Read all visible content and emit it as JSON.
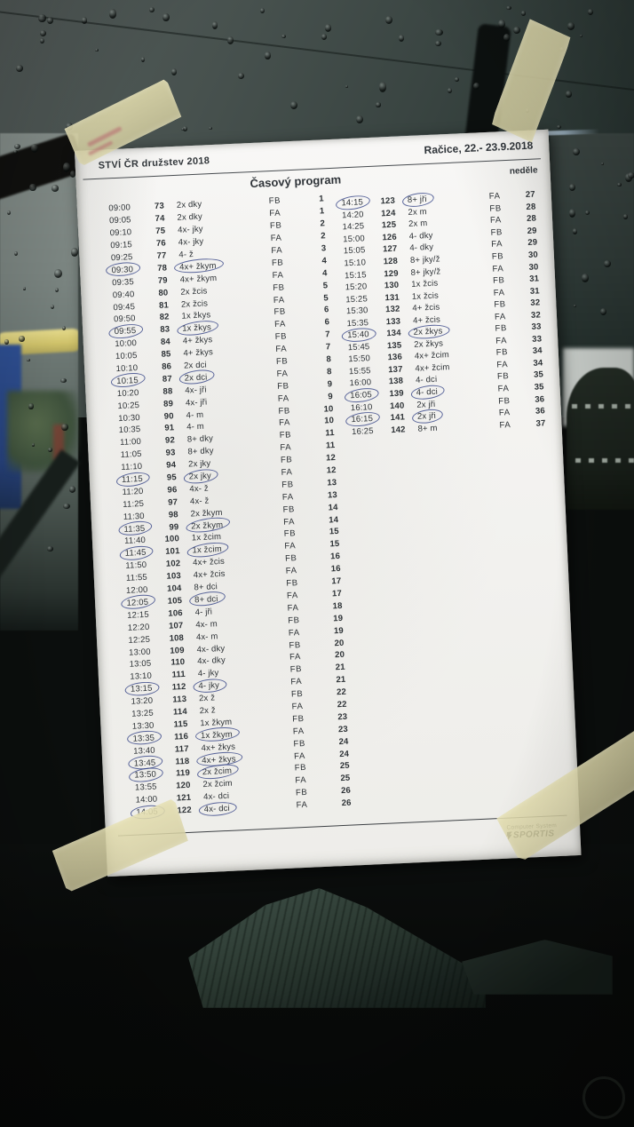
{
  "header": {
    "title_fragment": "STVÍ ČR družstev 2018",
    "location_date": "Račice,  22.- 23.9.2018",
    "program_title": "Časový program",
    "day_label": "neděle"
  },
  "schedule": {
    "columns_meaning": [
      "time",
      "start_number",
      "boat_category",
      "final_class",
      "race_number",
      "circled"
    ],
    "left": [
      [
        "09:00",
        "73",
        "2x dky",
        "FB",
        "1",
        0
      ],
      [
        "09:05",
        "74",
        "2x dky",
        "FA",
        "1",
        0
      ],
      [
        "09:10",
        "75",
        "4x- jky",
        "FB",
        "2",
        0
      ],
      [
        "09:15",
        "76",
        "4x- jky",
        "FA",
        "2",
        0
      ],
      [
        "09:25",
        "77",
        "4- ž",
        "FA",
        "3",
        0
      ],
      [
        "09:30",
        "78",
        "4x+ žkym",
        "FB",
        "4",
        1
      ],
      [
        "09:35",
        "79",
        "4x+ žkym",
        "FA",
        "4",
        0
      ],
      [
        "09:40",
        "80",
        "2x žcis",
        "FB",
        "5",
        0
      ],
      [
        "09:45",
        "81",
        "2x žcis",
        "FA",
        "5",
        0
      ],
      [
        "09:50",
        "82",
        "1x žkys",
        "FB",
        "6",
        0
      ],
      [
        "09:55",
        "83",
        "1x žkys",
        "FA",
        "6",
        1
      ],
      [
        "10:00",
        "84",
        "4+ žkys",
        "FB",
        "7",
        0
      ],
      [
        "10:05",
        "85",
        "4+ žkys",
        "FA",
        "7",
        0
      ],
      [
        "10:10",
        "86",
        "2x dci",
        "FB",
        "8",
        0
      ],
      [
        "10:15",
        "87",
        "2x dci",
        "FA",
        "8",
        1
      ],
      [
        "10:20",
        "88",
        "4x- jři",
        "FB",
        "9",
        0
      ],
      [
        "10:25",
        "89",
        "4x- jři",
        "FA",
        "9",
        0
      ],
      [
        "10:30",
        "90",
        "4- m",
        "FB",
        "10",
        0
      ],
      [
        "10:35",
        "91",
        "4- m",
        "FA",
        "10",
        0
      ],
      [
        "11:00",
        "92",
        "8+ dky",
        "FB",
        "11",
        0
      ],
      [
        "11:05",
        "93",
        "8+ dky",
        "FA",
        "11",
        0
      ],
      [
        "11:10",
        "94",
        "2x jky",
        "FB",
        "12",
        0
      ],
      [
        "11:15",
        "95",
        "2x jky",
        "FA",
        "12",
        1
      ],
      [
        "11:20",
        "96",
        "4x- ž",
        "FB",
        "13",
        0
      ],
      [
        "11:25",
        "97",
        "4x- ž",
        "FA",
        "13",
        0
      ],
      [
        "11:30",
        "98",
        "2x žkym",
        "FB",
        "14",
        0
      ],
      [
        "11:35",
        "99",
        "2x žkym",
        "FA",
        "14",
        1
      ],
      [
        "11:40",
        "100",
        "1x žcim",
        "FB",
        "15",
        0
      ],
      [
        "11:45",
        "101",
        "1x žcim",
        "FA",
        "15",
        1
      ],
      [
        "11:50",
        "102",
        "4x+ žcis",
        "FB",
        "16",
        0
      ],
      [
        "11:55",
        "103",
        "4x+ žcis",
        "FA",
        "16",
        0
      ],
      [
        "12:00",
        "104",
        "8+ dci",
        "FB",
        "17",
        0
      ],
      [
        "12:05",
        "105",
        "8+ dci",
        "FA",
        "17",
        1
      ],
      [
        "12:15",
        "106",
        "4- jři",
        "FA",
        "18",
        0
      ],
      [
        "12:20",
        "107",
        "4x- m",
        "FB",
        "19",
        0
      ],
      [
        "12:25",
        "108",
        "4x- m",
        "FA",
        "19",
        0
      ],
      [
        "13:00",
        "109",
        "4x- dky",
        "FB",
        "20",
        0
      ],
      [
        "13:05",
        "110",
        "4x- dky",
        "FA",
        "20",
        0
      ],
      [
        "13:10",
        "111",
        "4- jky",
        "FB",
        "21",
        0
      ],
      [
        "13:15",
        "112",
        "4- jky",
        "FA",
        "21",
        1
      ],
      [
        "13:20",
        "113",
        "2x ž",
        "FB",
        "22",
        0
      ],
      [
        "13:25",
        "114",
        "2x ž",
        "FA",
        "22",
        0
      ],
      [
        "13:30",
        "115",
        "1x žkym",
        "FB",
        "23",
        0
      ],
      [
        "13:35",
        "116",
        "1x žkym",
        "FA",
        "23",
        1
      ],
      [
        "13:40",
        "117",
        "4x+ žkys",
        "FB",
        "24",
        0
      ],
      [
        "13:45",
        "118",
        "4x+ žkys",
        "FA",
        "24",
        1
      ],
      [
        "13:50",
        "119",
        "2x žcim",
        "FB",
        "25",
        1
      ],
      [
        "13:55",
        "120",
        "2x žcim",
        "FA",
        "25",
        0
      ],
      [
        "14:00",
        "121",
        "4x- dci",
        "FB",
        "26",
        0
      ],
      [
        "14:05",
        "122",
        "4x- dci",
        "FA",
        "26",
        1
      ]
    ],
    "right": [
      [
        "14:15",
        "123",
        "8+ jři",
        "FA",
        "27",
        1
      ],
      [
        "14:20",
        "124",
        "2x m",
        "FB",
        "28",
        0
      ],
      [
        "14:25",
        "125",
        "2x m",
        "FA",
        "28",
        0
      ],
      [
        "15:00",
        "126",
        "4- dky",
        "FB",
        "29",
        0
      ],
      [
        "15:05",
        "127",
        "4- dky",
        "FA",
        "29",
        0
      ],
      [
        "15:10",
        "128",
        "8+ jky/ž",
        "FB",
        "30",
        0
      ],
      [
        "15:15",
        "129",
        "8+ jky/ž",
        "FA",
        "30",
        0
      ],
      [
        "15:20",
        "130",
        "1x žcis",
        "FB",
        "31",
        0
      ],
      [
        "15:25",
        "131",
        "1x žcis",
        "FA",
        "31",
        0
      ],
      [
        "15:30",
        "132",
        "4+ žcis",
        "FB",
        "32",
        0
      ],
      [
        "15:35",
        "133",
        "4+ žcis",
        "FA",
        "32",
        0
      ],
      [
        "15:40",
        "134",
        "2x žkys",
        "FB",
        "33",
        1
      ],
      [
        "15:45",
        "135",
        "2x žkys",
        "FA",
        "33",
        0
      ],
      [
        "15:50",
        "136",
        "4x+ žcim",
        "FB",
        "34",
        0
      ],
      [
        "15:55",
        "137",
        "4x+ žcim",
        "FA",
        "34",
        0
      ],
      [
        "16:00",
        "138",
        "4- dci",
        "FB",
        "35",
        0
      ],
      [
        "16:05",
        "139",
        "4- dci",
        "FA",
        "35",
        1
      ],
      [
        "16:10",
        "140",
        "2x jři",
        "FB",
        "36",
        0
      ],
      [
        "16:15",
        "141",
        "2x jři",
        "FA",
        "36",
        1
      ],
      [
        "16:25",
        "142",
        "8+ m",
        "FA",
        "37",
        0
      ]
    ]
  },
  "footer": {
    "line1": "Computer System",
    "name": "SPORTIS"
  },
  "colors": {
    "paper": "#f2f1ee",
    "ink": "#2c3135",
    "circle_ink": "#2d3c82",
    "tape": "#ded8aa"
  }
}
